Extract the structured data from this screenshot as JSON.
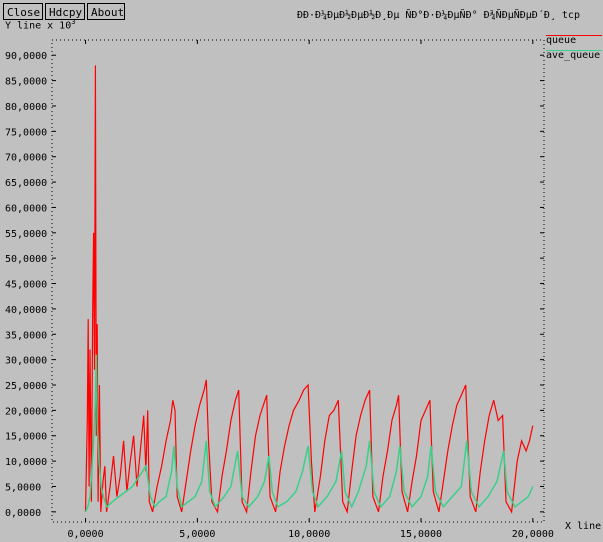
{
  "toolbar": {
    "close": "Close",
    "hdcpy": "Hdcpy",
    "about": "About"
  },
  "window_title": "ÐÐ·Ð¼ÐµÐ½ÐµÐ½Ð¸Ðµ ÑÐ°Ð·Ð¼ÐµÑÐ° Ð¾ÑÐµÑÐµÐ´Ð¸ tcp",
  "colors": {
    "background": "#c0c0c0",
    "queue": "#ff0000",
    "ave_queue": "#3ad08a"
  },
  "chart_data": {
    "type": "line",
    "xlabel": "X line",
    "ylabel": "Y line x 10",
    "ylabel_exp": "3",
    "xlim": [
      -1500,
      20500
    ],
    "ylim": [
      -2,
      93
    ],
    "x_ticks": [
      0,
      5000,
      10000,
      15000,
      20000
    ],
    "x_tick_labels": [
      "0,0000",
      "5,0000",
      "10,0000",
      "15,0000",
      "20,0000"
    ],
    "y_ticks": [
      0,
      5,
      10,
      15,
      20,
      25,
      30,
      35,
      40,
      45,
      50,
      55,
      60,
      65,
      70,
      75,
      80,
      85,
      90
    ],
    "y_tick_labels": [
      "0,0000",
      "5,0000",
      "10,0000",
      "15,0000",
      "20,0000",
      "25,0000",
      "30,0000",
      "35,0000",
      "40,0000",
      "45,0000",
      "50,0000",
      "55,0000",
      "60,0000",
      "65,0000",
      "70,0000",
      "75,0000",
      "80,0000",
      "85,0000",
      "90,0000"
    ],
    "legend_position": "top-right",
    "series": [
      {
        "name": "queue",
        "color": "#ff0000",
        "points": [
          [
            0,
            0
          ],
          [
            80,
            18
          ],
          [
            120,
            38
          ],
          [
            160,
            5
          ],
          [
            200,
            32
          ],
          [
            260,
            2
          ],
          [
            320,
            40
          ],
          [
            360,
            55
          ],
          [
            400,
            28
          ],
          [
            440,
            88
          ],
          [
            480,
            15
          ],
          [
            520,
            37
          ],
          [
            560,
            2
          ],
          [
            620,
            25
          ],
          [
            680,
            0
          ],
          [
            780,
            6
          ],
          [
            860,
            9
          ],
          [
            940,
            0
          ],
          [
            1100,
            5
          ],
          [
            1250,
            11
          ],
          [
            1400,
            3
          ],
          [
            1550,
            7
          ],
          [
            1700,
            14
          ],
          [
            1850,
            4
          ],
          [
            2000,
            10
          ],
          [
            2150,
            15
          ],
          [
            2300,
            5
          ],
          [
            2450,
            12
          ],
          [
            2600,
            19
          ],
          [
            2700,
            8
          ],
          [
            2780,
            20
          ],
          [
            2850,
            2
          ],
          [
            3000,
            0
          ],
          [
            3200,
            5
          ],
          [
            3400,
            9
          ],
          [
            3600,
            14
          ],
          [
            3800,
            18
          ],
          [
            3900,
            22
          ],
          [
            4000,
            20
          ],
          [
            4100,
            3
          ],
          [
            4300,
            0
          ],
          [
            4500,
            6
          ],
          [
            4700,
            12
          ],
          [
            4900,
            17
          ],
          [
            5100,
            21
          ],
          [
            5300,
            24
          ],
          [
            5400,
            26
          ],
          [
            5500,
            14
          ],
          [
            5650,
            2
          ],
          [
            5900,
            0
          ],
          [
            6100,
            7
          ],
          [
            6300,
            12
          ],
          [
            6500,
            18
          ],
          [
            6700,
            22
          ],
          [
            6850,
            24
          ],
          [
            7000,
            2
          ],
          [
            7200,
            0
          ],
          [
            7400,
            8
          ],
          [
            7600,
            15
          ],
          [
            7800,
            19
          ],
          [
            7950,
            21
          ],
          [
            8100,
            23
          ],
          [
            8250,
            3
          ],
          [
            8500,
            0
          ],
          [
            8700,
            8
          ],
          [
            8900,
            13
          ],
          [
            9100,
            17
          ],
          [
            9300,
            20
          ],
          [
            9550,
            22
          ],
          [
            9750,
            24
          ],
          [
            9950,
            25
          ],
          [
            10100,
            10
          ],
          [
            10250,
            0
          ],
          [
            10500,
            7
          ],
          [
            10700,
            14
          ],
          [
            10900,
            19
          ],
          [
            11100,
            20
          ],
          [
            11300,
            22
          ],
          [
            11500,
            2
          ],
          [
            11700,
            0
          ],
          [
            11900,
            8
          ],
          [
            12100,
            15
          ],
          [
            12300,
            19
          ],
          [
            12500,
            22
          ],
          [
            12700,
            24
          ],
          [
            12850,
            3
          ],
          [
            13100,
            0
          ],
          [
            13300,
            7
          ],
          [
            13500,
            12
          ],
          [
            13700,
            18
          ],
          [
            13900,
            21
          ],
          [
            14000,
            23
          ],
          [
            14150,
            4
          ],
          [
            14400,
            0
          ],
          [
            14600,
            6
          ],
          [
            14800,
            11
          ],
          [
            15000,
            18
          ],
          [
            15200,
            20
          ],
          [
            15400,
            22
          ],
          [
            15550,
            4
          ],
          [
            15800,
            0
          ],
          [
            16000,
            6
          ],
          [
            16200,
            12
          ],
          [
            16400,
            17
          ],
          [
            16600,
            21
          ],
          [
            16800,
            23
          ],
          [
            17000,
            25
          ],
          [
            17200,
            3
          ],
          [
            17450,
            0
          ],
          [
            17650,
            8
          ],
          [
            17850,
            14
          ],
          [
            18050,
            19
          ],
          [
            18250,
            22
          ],
          [
            18450,
            18
          ],
          [
            18650,
            19
          ],
          [
            18800,
            2
          ],
          [
            19050,
            0
          ],
          [
            19300,
            10
          ],
          [
            19500,
            14
          ],
          [
            19700,
            12
          ],
          [
            19850,
            14
          ],
          [
            20000,
            17
          ]
        ]
      },
      {
        "name": "ave_queue",
        "color": "#3ad08a",
        "points": [
          [
            0,
            0
          ],
          [
            100,
            1
          ],
          [
            200,
            3
          ],
          [
            280,
            8
          ],
          [
            360,
            14
          ],
          [
            440,
            22
          ],
          [
            480,
            31
          ],
          [
            520,
            18
          ],
          [
            600,
            10
          ],
          [
            700,
            5
          ],
          [
            800,
            3
          ],
          [
            950,
            1
          ],
          [
            1200,
            2
          ],
          [
            1500,
            3
          ],
          [
            1800,
            4
          ],
          [
            2100,
            5
          ],
          [
            2400,
            7
          ],
          [
            2700,
            9
          ],
          [
            2900,
            3
          ],
          [
            3100,
            1
          ],
          [
            3300,
            2
          ],
          [
            3600,
            3
          ],
          [
            3850,
            8
          ],
          [
            3950,
            13
          ],
          [
            4100,
            5
          ],
          [
            4300,
            1
          ],
          [
            4600,
            2
          ],
          [
            4900,
            3
          ],
          [
            5200,
            6
          ],
          [
            5400,
            14
          ],
          [
            5550,
            4
          ],
          [
            5800,
            1
          ],
          [
            6200,
            3
          ],
          [
            6500,
            5
          ],
          [
            6800,
            12
          ],
          [
            7000,
            3
          ],
          [
            7300,
            1
          ],
          [
            7700,
            3
          ],
          [
            8000,
            6
          ],
          [
            8200,
            11
          ],
          [
            8350,
            4
          ],
          [
            8600,
            1
          ],
          [
            9000,
            2
          ],
          [
            9400,
            4
          ],
          [
            9700,
            8
          ],
          [
            9950,
            13
          ],
          [
            10150,
            4
          ],
          [
            10400,
            1
          ],
          [
            10800,
            3
          ],
          [
            11200,
            6
          ],
          [
            11450,
            12
          ],
          [
            11600,
            4
          ],
          [
            11900,
            1
          ],
          [
            12200,
            4
          ],
          [
            12550,
            9
          ],
          [
            12700,
            14
          ],
          [
            12900,
            4
          ],
          [
            13200,
            1
          ],
          [
            13600,
            3
          ],
          [
            13900,
            8
          ],
          [
            14050,
            13
          ],
          [
            14250,
            4
          ],
          [
            14600,
            1
          ],
          [
            15000,
            3
          ],
          [
            15300,
            7
          ],
          [
            15450,
            13
          ],
          [
            15650,
            4
          ],
          [
            16000,
            1
          ],
          [
            16400,
            3
          ],
          [
            16800,
            5
          ],
          [
            17050,
            14
          ],
          [
            17250,
            4
          ],
          [
            17600,
            1
          ],
          [
            18000,
            3
          ],
          [
            18400,
            6
          ],
          [
            18700,
            12
          ],
          [
            18850,
            4
          ],
          [
            19200,
            1
          ],
          [
            19500,
            2
          ],
          [
            19800,
            3
          ],
          [
            20000,
            5
          ]
        ]
      }
    ]
  }
}
